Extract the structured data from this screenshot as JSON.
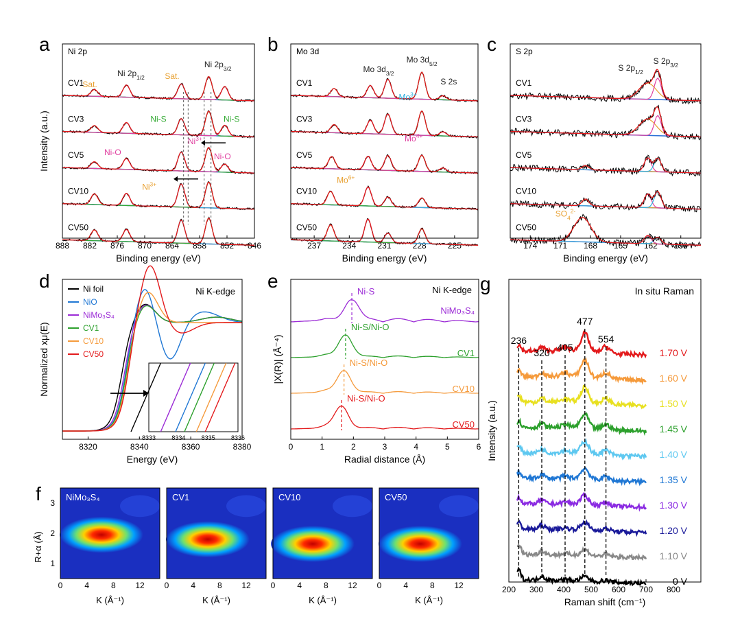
{
  "chart_data": [
    {
      "id": "a",
      "type": "line",
      "panel_letter": "a",
      "corner_label": "Ni 2p",
      "xlabel": "Binding energy (eV)",
      "ylabel": "Intensity (a.u.)",
      "xlim": [
        888,
        846
      ],
      "xticks": [
        888,
        882,
        876,
        870,
        864,
        858,
        852,
        846
      ],
      "series": [
        {
          "name": "CV1",
          "peaks": [
            [
              881,
              0.25
            ],
            [
              874,
              0.45
            ],
            [
              862,
              0.55
            ],
            [
              856,
              0.85
            ],
            [
              852.5,
              0.5
            ]
          ]
        },
        {
          "name": "CV3",
          "peaks": [
            [
              881,
              0.25
            ],
            [
              874,
              0.4
            ],
            [
              862,
              0.6
            ],
            [
              856,
              0.9
            ],
            [
              852.5,
              0.4
            ]
          ]
        },
        {
          "name": "CV5",
          "peaks": [
            [
              881,
              0.25
            ],
            [
              874,
              0.4
            ],
            [
              862,
              0.7
            ],
            [
              856,
              0.9
            ],
            [
              852.5,
              0.3
            ]
          ]
        },
        {
          "name": "CV10",
          "peaks": [
            [
              881,
              0.4
            ],
            [
              874,
              0.45
            ],
            [
              862,
              0.85
            ],
            [
              856,
              0.95
            ]
          ]
        },
        {
          "name": "CV50",
          "peaks": [
            [
              881,
              0.4
            ],
            [
              874,
              0.45
            ],
            [
              862,
              0.85
            ],
            [
              856,
              0.95
            ]
          ]
        }
      ],
      "annotations": [
        {
          "text": "Ni 2p",
          "sub": "1/2",
          "x": 873,
          "row": 0,
          "dy": -22,
          "color": "#222222"
        },
        {
          "text": "Ni 2p",
          "sub": "3/2",
          "x": 854,
          "row": 0,
          "dy": -35,
          "color": "#222222"
        },
        {
          "text": "Sat.",
          "x": 882,
          "row": 0,
          "dy": -6,
          "color": "#e8a030"
        },
        {
          "text": "Sat.",
          "x": 864,
          "row": 0,
          "dy": -18,
          "color": "#e8a030"
        },
        {
          "text": "Ni-S",
          "x": 867,
          "row": 1,
          "dy": -8,
          "color": "#33aa33"
        },
        {
          "text": "Ni-S",
          "x": 851,
          "row": 1,
          "dy": -8,
          "color": "#33aa33"
        },
        {
          "text": "Ni-O",
          "x": 877,
          "row": 2,
          "dy": -12,
          "color": "#e040a0"
        },
        {
          "text": "Ni",
          "sup": "3+",
          "x": 859,
          "row": 2,
          "dy": -28,
          "color": "#e040a0"
        },
        {
          "text": "Ni-O",
          "x": 853,
          "row": 2,
          "dy": -6,
          "color": "#e040a0"
        },
        {
          "text": "Ni",
          "sup": "3+",
          "x": 869,
          "row": 3,
          "dy": -14,
          "color": "#e8a030"
        }
      ]
    },
    {
      "id": "b",
      "type": "line",
      "panel_letter": "b",
      "corner_label": "Mo 3d",
      "xlabel": "Binding energy (eV)",
      "ylabel": "",
      "xlim": [
        239,
        223
      ],
      "xticks": [
        237,
        234,
        231,
        228,
        225
      ],
      "series": [
        {
          "name": "CV1",
          "peaks": [
            [
              235.3,
              0.3
            ],
            [
              232.2,
              0.45
            ],
            [
              230.7,
              0.7
            ],
            [
              227.8,
              1.0
            ],
            [
              226,
              0.15
            ]
          ]
        },
        {
          "name": "CV3",
          "peaks": [
            [
              235.3,
              0.3
            ],
            [
              232.2,
              0.5
            ],
            [
              230.7,
              0.75
            ],
            [
              227.8,
              0.9
            ],
            [
              226,
              0.15
            ]
          ]
        },
        {
          "name": "CV5",
          "peaks": [
            [
              235.5,
              0.45
            ],
            [
              232.4,
              0.5
            ],
            [
              230.7,
              0.55
            ],
            [
              227.8,
              0.6
            ],
            [
              226,
              0.15
            ]
          ]
        },
        {
          "name": "CV10",
          "peaks": [
            [
              235.6,
              0.5
            ],
            [
              232.4,
              0.7
            ],
            [
              230.7,
              0.35
            ],
            [
              227.8,
              0.35
            ]
          ]
        },
        {
          "name": "CV50",
          "peaks": [
            [
              235.6,
              0.6
            ],
            [
              232.4,
              0.85
            ],
            [
              230.7,
              0.35
            ],
            [
              227.8,
              0.55
            ]
          ]
        }
      ],
      "annotations": [
        {
          "text": "Mo 3d",
          "sub": "3/2",
          "x": 231.5,
          "row": 0,
          "dy": -28,
          "color": "#222222"
        },
        {
          "text": "Mo 3d",
          "sub": "5/2",
          "x": 227.8,
          "row": 0,
          "dy": -42,
          "color": "#222222"
        },
        {
          "text": "S 2s",
          "x": 225.5,
          "row": 0,
          "dy": -10,
          "color": "#222222"
        },
        {
          "text": "Mo",
          "sup": "3+",
          "x": 229,
          "row": 1,
          "dy": -40,
          "color": "#30b0e0"
        },
        {
          "text": "Mo",
          "sup": "4+",
          "x": 228.5,
          "row": 2,
          "dy": -32,
          "color": "#e040a0"
        },
        {
          "text": "Mo",
          "sup": "6+",
          "x": 234.3,
          "row": 3,
          "dy": -24,
          "color": "#e8a030"
        }
      ]
    },
    {
      "id": "c",
      "type": "line",
      "panel_letter": "c",
      "corner_label": "S 2p",
      "xlabel": "Binding energy (eV)",
      "ylabel": "",
      "xlim": [
        176,
        157
      ],
      "xticks": [
        174,
        171,
        168,
        165,
        162,
        159
      ],
      "series": [
        {
          "name": "CV1",
          "peaks": [
            [
              162.3,
              0.6
            ],
            [
              161.3,
              0.8
            ]
          ]
        },
        {
          "name": "CV3",
          "peaks": [
            [
              162.3,
              0.6
            ],
            [
              161.3,
              0.75
            ]
          ]
        },
        {
          "name": "CV5",
          "peaks": [
            [
              168.5,
              0.15
            ],
            [
              162.3,
              0.5
            ],
            [
              161.3,
              0.5
            ]
          ]
        },
        {
          "name": "CV10",
          "peaks": [
            [
              168.5,
              0.25
            ],
            [
              162.3,
              0.5
            ],
            [
              161.3,
              0.6
            ]
          ]
        },
        {
          "name": "CV50",
          "peaks": [
            [
              168.8,
              0.9
            ],
            [
              162.3,
              0.3
            ],
            [
              161.3,
              0.25
            ]
          ]
        }
      ],
      "annotations": [
        {
          "text": "S 2p",
          "sub": "1/2",
          "x": 164,
          "row": 0,
          "dy": -30,
          "color": "#222222"
        },
        {
          "text": "S 2p",
          "sub": "3/2",
          "x": 160.5,
          "row": 0,
          "dy": -40,
          "color": "#222222"
        },
        {
          "text": "SO",
          "sub": "4",
          "sup": "2-",
          "x": 170.5,
          "row": 4,
          "dy": -28,
          "color": "#e8a030"
        }
      ]
    },
    {
      "id": "d",
      "type": "line",
      "panel_letter": "d",
      "corner_label": "Ni K-edge",
      "xlabel": "Energy (eV)",
      "ylabel": "Normalized xμ(E)",
      "xlim": [
        8310,
        8380
      ],
      "xticks": [
        8320,
        8340,
        8360,
        8380
      ],
      "series": [
        {
          "name": "Ni foil",
          "color": "#000000",
          "e0": 8333
        },
        {
          "name": "NiO",
          "color": "#1f77d4",
          "e0": 8334.5
        },
        {
          "name": "NiMo₃S₄",
          "color": "#9b2bd6",
          "e0": 8334
        },
        {
          "name": "CV1",
          "color": "#2ca02c",
          "e0": 8334.8
        },
        {
          "name": "CV10",
          "color": "#f59a3b",
          "e0": 8335.2
        },
        {
          "name": "CV50",
          "color": "#e31a1c",
          "e0": 8335.5
        }
      ],
      "inset": {
        "xticks": [
          8333,
          8334,
          8335,
          8336
        ]
      }
    },
    {
      "id": "e",
      "type": "line",
      "panel_letter": "e",
      "corner_label": "Ni K-edge",
      "xlabel": "Radial distance (Å)",
      "ylabel": "|X(R)| (Å⁻⁴)",
      "xlim": [
        0,
        6
      ],
      "xticks": [
        0,
        1,
        2,
        3,
        4,
        5,
        6
      ],
      "series": [
        {
          "name": "NiMo₃S₄",
          "color": "#9b2bd6",
          "peak": 1.95,
          "label": "Ni-S"
        },
        {
          "name": "CV1",
          "color": "#2ca02c",
          "peak": 1.75,
          "label": "Ni-S/Ni-O"
        },
        {
          "name": "CV10",
          "color": "#f59a3b",
          "peak": 1.7,
          "label": "Ni-S/Ni-O"
        },
        {
          "name": "CV50",
          "color": "#e31a1c",
          "peak": 1.62,
          "label": "Ni-S/Ni-O"
        }
      ]
    },
    {
      "id": "f",
      "type": "heatmap",
      "panel_letter": "f",
      "xlabel": "K (Å⁻¹)",
      "ylabel": "R+α (Å)",
      "xticks": [
        0,
        4,
        8,
        12
      ],
      "yticks": [
        1,
        2,
        3
      ],
      "maps": [
        {
          "name": "NiMo₃S₄",
          "cx": 6.2,
          "cy": 1.95
        },
        {
          "name": "CV1",
          "cx": 6.2,
          "cy": 1.8
        },
        {
          "name": "CV10",
          "cx": 6.0,
          "cy": 1.65
        },
        {
          "name": "CV50",
          "cx": 6.2,
          "cy": 1.65
        }
      ]
    },
    {
      "id": "g",
      "type": "line",
      "panel_letter": "g",
      "corner_label": "In situ Raman",
      "xlabel": "Raman shift (cm⁻¹)",
      "ylabel": "Intensity (a.u.)",
      "xlim": [
        200,
        900
      ],
      "xticks": [
        200,
        300,
        400,
        500,
        600,
        700,
        800
      ],
      "peak_positions": [
        236,
        320,
        405,
        477,
        554
      ],
      "series": [
        {
          "name": "1.70 V",
          "color": "#e31a1c"
        },
        {
          "name": "1.60 V",
          "color": "#f59a3b"
        },
        {
          "name": "1.50 V",
          "color": "#e8e020"
        },
        {
          "name": "1.45 V",
          "color": "#2ca02c"
        },
        {
          "name": "1.40 V",
          "color": "#5ec8f0"
        },
        {
          "name": "1.35 V",
          "color": "#1f77d4"
        },
        {
          "name": "1.30 V",
          "color": "#8b2be2"
        },
        {
          "name": "1.20 V",
          "color": "#1a1a9a"
        },
        {
          "name": "1.10 V",
          "color": "#888888"
        },
        {
          "name": "0 V",
          "color": "#000000"
        }
      ]
    }
  ]
}
